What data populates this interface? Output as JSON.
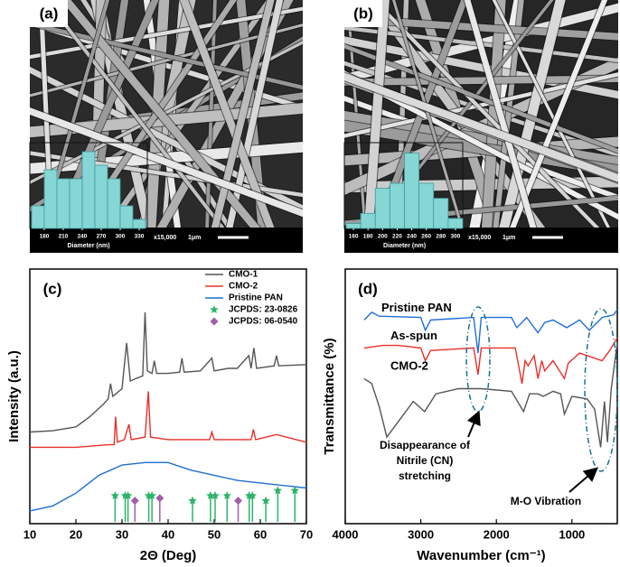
{
  "chart_data": [
    {
      "type": "histogram",
      "panel_label": "(a)",
      "xlabel": "Diameter (nm)",
      "bins": [
        160,
        180,
        200,
        220,
        240,
        260,
        280,
        300,
        320,
        340
      ],
      "values": [
        5,
        13,
        11,
        11,
        17,
        14,
        11,
        5,
        2
      ],
      "xlim": [
        160,
        340
      ],
      "xticks": [
        180,
        210,
        240,
        270,
        300,
        330
      ],
      "ylim": [
        0,
        20
      ],
      "color": "#86d6d6",
      "magnification": "x15,000",
      "scale_bar": "1μm"
    },
    {
      "type": "histogram",
      "panel_label": "(b)",
      "xlabel": "Diameter (nm)",
      "bins": [
        150,
        170,
        190,
        210,
        230,
        250,
        270,
        290,
        310
      ],
      "values": [
        1,
        3,
        8,
        9,
        15,
        9,
        6,
        2
      ],
      "xlim": [
        150,
        310
      ],
      "xticks": [
        160,
        180,
        200,
        220,
        240,
        260,
        280,
        300
      ],
      "ylim": [
        0,
        18
      ],
      "color": "#86d6d6",
      "magnification": "x15,000",
      "scale_bar": "1μm"
    },
    {
      "type": "line",
      "panel_label": "(c)",
      "xlabel": "2Θ (Deg)",
      "ylabel": "Intensity (a.u.)",
      "xlim": [
        10,
        70
      ],
      "xticks": [
        10,
        20,
        30,
        40,
        50,
        60,
        70
      ],
      "ylim": [
        0,
        100
      ],
      "legend": "upper right",
      "series": [
        {
          "name": "CMO-1",
          "color": "#555555",
          "x": [
            10,
            15,
            20,
            23,
            26,
            27,
            27.5,
            28,
            30,
            31,
            31.8,
            33,
            34.5,
            35,
            35.5,
            36.5,
            37,
            37.5,
            40,
            42.5,
            43,
            43.5,
            47,
            49.5,
            50,
            53,
            55,
            57.5,
            58,
            58.6,
            59.2,
            63,
            63.5,
            64,
            70
          ],
          "values": [
            36,
            36.5,
            38,
            42,
            47,
            49,
            55,
            50,
            53,
            71,
            56,
            57,
            58,
            83,
            60,
            59,
            64,
            59,
            59,
            59.5,
            65,
            59.5,
            60,
            65,
            60,
            61,
            61,
            66,
            61,
            69,
            61,
            62,
            66,
            62,
            62.5
          ]
        },
        {
          "name": "CMO-2",
          "color": "#e8302a",
          "x": [
            10,
            20,
            27,
            28.3,
            28.6,
            29,
            30.5,
            31.5,
            32,
            35,
            35.7,
            36.2,
            40,
            49,
            49.5,
            50,
            58,
            58.5,
            59,
            63.5,
            70
          ],
          "values": [
            30,
            30,
            31,
            31,
            42,
            32,
            33,
            39,
            33,
            34,
            52,
            34,
            33,
            33,
            36,
            33,
            33,
            37,
            33,
            35,
            32
          ]
        },
        {
          "name": "Pristine PAN",
          "color": "#1f6fd1",
          "x": [
            10,
            15,
            20,
            25,
            30,
            35,
            40,
            45,
            50,
            55,
            60,
            65,
            70
          ],
          "values": [
            5,
            7,
            12,
            19,
            23,
            24,
            24,
            21,
            19,
            17,
            16,
            15,
            14
          ]
        },
        {
          "name": "JCPDS: 23-0826",
          "color": "#2db36a",
          "marker": "star",
          "x": [
            28.5,
            30.7,
            31.3,
            35.8,
            36.5,
            45.3,
            49.2,
            50.2,
            52.8,
            57.6,
            58.3,
            61.2,
            63.8,
            67.5
          ],
          "values": [
            11,
            11,
            11,
            11,
            11,
            9,
            11,
            11,
            11,
            11,
            11,
            9,
            13,
            13
          ]
        },
        {
          "name": "JCPDS: 06-0540",
          "color": "#a05fa8",
          "marker": "diamond",
          "x": [
            32.8,
            38.2,
            55.2
          ],
          "values": [
            9,
            10,
            9
          ]
        }
      ]
    },
    {
      "type": "line",
      "panel_label": "(d)",
      "xlabel": "Wavenumber (cm⁻¹)",
      "ylabel": "Transmittance (%)",
      "xlim": [
        4000,
        400
      ],
      "xticks": [
        4000,
        3000,
        2000,
        1000
      ],
      "ylim": [
        0,
        100
      ],
      "series_labels": "inline",
      "series": [
        {
          "name": "Pristine PAN",
          "color": "#1f6fd1",
          "x": [
            3750,
            3650,
            3550,
            3000,
            2940,
            2870,
            2300,
            2243,
            2200,
            1800,
            1730,
            1660,
            1600,
            1450,
            1360,
            1250,
            1070,
            900,
            770,
            600,
            450,
            400
          ],
          "values": [
            80,
            83,
            81.5,
            81,
            76,
            80,
            81,
            67,
            81,
            81,
            77,
            79,
            81,
            75,
            79,
            80,
            77,
            80,
            76,
            81,
            82,
            84
          ]
        },
        {
          "name": "As-spun",
          "color": "#e8302a",
          "x": [
            3750,
            3500,
            3300,
            3000,
            2940,
            2870,
            2300,
            2243,
            2200,
            1750,
            1660,
            1620,
            1580,
            1500,
            1450,
            1400,
            1360,
            1250,
            1100,
            1050,
            900,
            600,
            500,
            400
          ],
          "values": [
            69,
            70,
            70,
            69,
            64,
            68,
            69,
            58.5,
            69,
            69,
            55,
            64,
            62,
            66,
            57,
            64,
            60,
            64,
            57,
            63,
            67,
            64,
            68,
            73
          ]
        },
        {
          "name": "CMO-2",
          "color": "#555555",
          "x": [
            3750,
            3650,
            3550,
            3450,
            3300,
            3100,
            2950,
            2800,
            2500,
            2200,
            1800,
            1640,
            1560,
            1450,
            1380,
            1250,
            1150,
            1100,
            1000,
            800,
            700,
            620,
            570,
            530,
            480,
            400
          ],
          "values": [
            57,
            55,
            46,
            34,
            40,
            48,
            44,
            51,
            53,
            53,
            52,
            44,
            51,
            51,
            50,
            52,
            51,
            43,
            50,
            49,
            45,
            30,
            48,
            32,
            53,
            71
          ]
        }
      ],
      "annotations": [
        {
          "text": [
            "Disappearance of",
            "Nitrile (CN)",
            "stretching"
          ]
        },
        {
          "text": "M-O Vibration"
        }
      ]
    }
  ]
}
